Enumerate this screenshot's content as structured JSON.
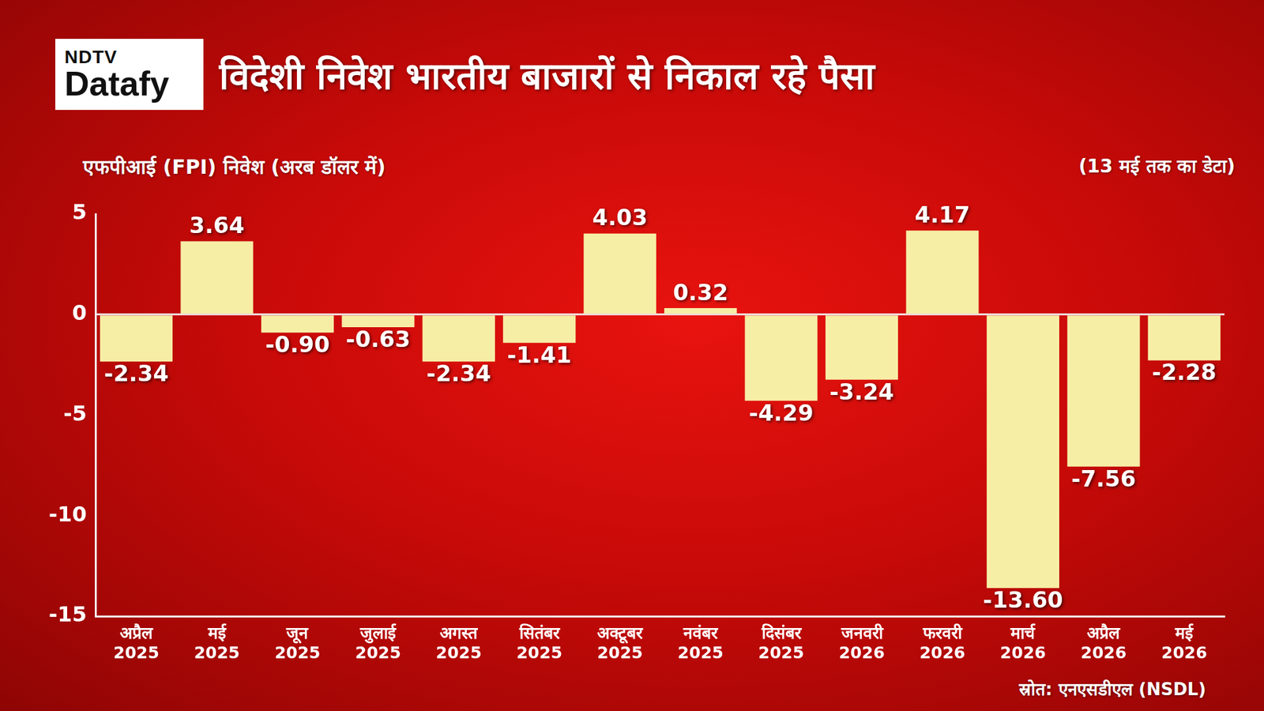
{
  "chart_data": {
    "type": "bar",
    "logo": [
      "NDTV",
      "Datafy"
    ],
    "title": "विदेशी निवेश भारतीय बाजारों से निकाल रहे पैसा",
    "ylabel": "एफपीआई (FPI) निवेश (अरब डॉलर में)",
    "annotation": "(13 मई तक का डेटा)",
    "source": "स्रोत: एनएसडीएल (NSDL)",
    "categories": [
      "अप्रैल 2025",
      "मई 2025",
      "जून 2025",
      "जुलाई 2025",
      "अगस्त 2025",
      "सितंबर 2025",
      "अक्टूबर 2025",
      "नवंबर 2025",
      "दिसंबर 2025",
      "जनवरी 2026",
      "फरवरी 2026",
      "मार्च 2026",
      "अप्रैल 2026",
      "मई 2026"
    ],
    "values": [
      -2.34,
      3.64,
      -0.9,
      -0.63,
      -2.34,
      -1.41,
      4.03,
      0.32,
      -4.29,
      -3.24,
      4.17,
      -13.6,
      -7.56,
      -2.28
    ],
    "value_labels": [
      "-2.34",
      "3.64",
      "-0.90",
      "-0.63",
      "-2.34",
      "-1.41",
      "4.03",
      "0.32",
      "-4.29",
      "-3.24",
      "4.17",
      "-13.60",
      "-7.56",
      "-2.28"
    ],
    "color": "#f7eea6",
    "ylim": [
      -15,
      5
    ],
    "yticks": [
      -15,
      -10,
      -5,
      0,
      5
    ],
    "grid": false,
    "data_labels": true
  }
}
